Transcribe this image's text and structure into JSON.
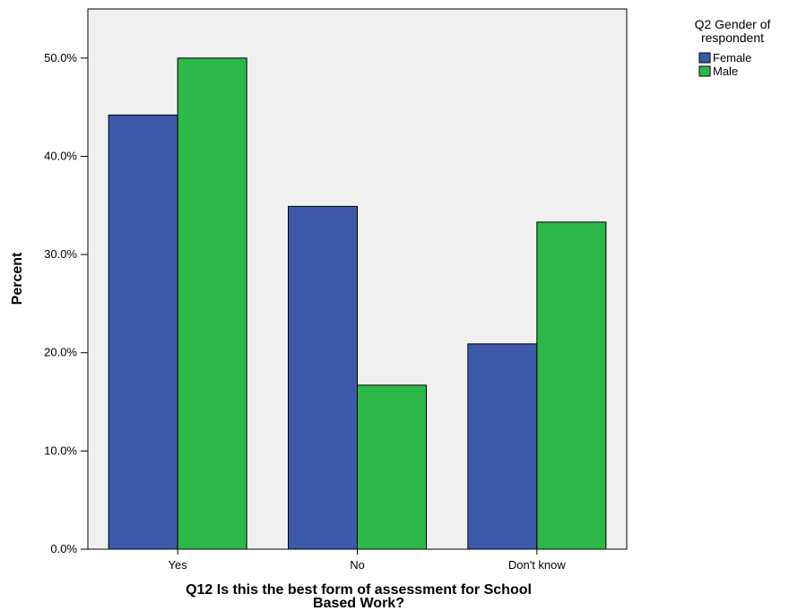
{
  "chart_data": {
    "type": "bar",
    "categories": [
      "Yes",
      "No",
      "Don't know"
    ],
    "series": [
      {
        "name": "Female",
        "values": [
          44.2,
          34.9,
          20.9
        ],
        "color": "#3d5aaa"
      },
      {
        "name": "Male",
        "values": [
          50.0,
          16.7,
          33.3
        ],
        "color": "#2db84a"
      }
    ],
    "title": "",
    "xlabel_lines": [
      "Q12 Is this the best form of assessment for School",
      "Based Work?"
    ],
    "ylabel": "Percent",
    "ylim": [
      0,
      55
    ],
    "yticks": [
      0,
      10,
      20,
      30,
      40,
      50
    ],
    "ytick_labels": [
      "0.0%",
      "10.0%",
      "20.0%",
      "30.0%",
      "40.0%",
      "50.0%"
    ],
    "legend_title_lines": [
      "Q2 Gender of",
      "respondent"
    ],
    "legend_position": "top-right",
    "plot_background": "#f0f0f0",
    "grid": false
  }
}
